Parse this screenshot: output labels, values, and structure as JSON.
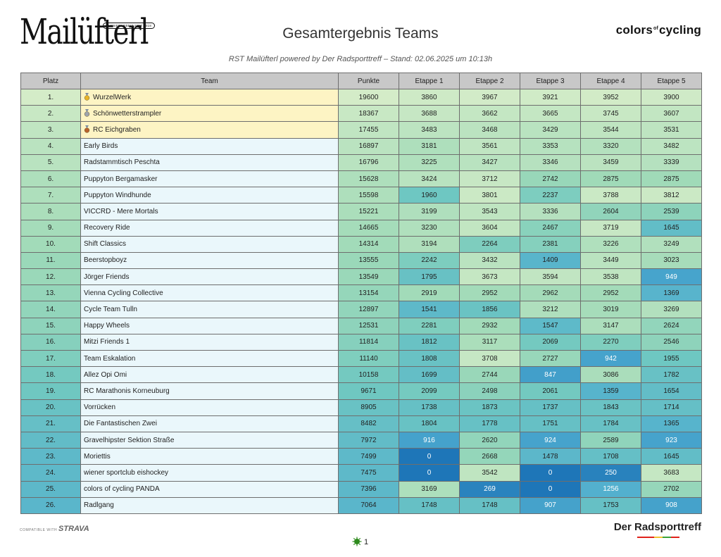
{
  "header": {
    "brand_left": "Mailüfterl",
    "brand_left_tag": "PIONIERARBEIT SEIT 2018",
    "title": "Gesamtergebnis Teams",
    "subtitle": "RST Mailüfterl powered by Der Radsporttreff – Stand: 02.06.2025 um 10:13h",
    "brand_right_a": "colors",
    "brand_right_of": "of",
    "brand_right_b": "cycling"
  },
  "table": {
    "columns": [
      "Platz",
      "Team",
      "Punkte",
      "Etappe 1",
      "Etappe 2",
      "Etappe 3",
      "Etappe 4",
      "Etappe 5"
    ],
    "rows": [
      {
        "platz": "1.",
        "team": "WurzelWerk",
        "medal": "gold",
        "punkte": "19600",
        "e": [
          "3860",
          "3967",
          "3921",
          "3952",
          "3900"
        ]
      },
      {
        "platz": "2.",
        "team": "Schönwetterstrampler",
        "medal": "silver",
        "punkte": "18367",
        "e": [
          "3688",
          "3662",
          "3665",
          "3745",
          "3607"
        ]
      },
      {
        "platz": "3.",
        "team": "RC Eichgraben",
        "medal": "bronze",
        "punkte": "17455",
        "e": [
          "3483",
          "3468",
          "3429",
          "3544",
          "3531"
        ]
      },
      {
        "platz": "4.",
        "team": "Early Birds",
        "medal": "",
        "punkte": "16897",
        "e": [
          "3181",
          "3561",
          "3353",
          "3320",
          "3482"
        ]
      },
      {
        "platz": "5.",
        "team": "Radstammtisch Peschta",
        "medal": "",
        "punkte": "16796",
        "e": [
          "3225",
          "3427",
          "3346",
          "3459",
          "3339"
        ]
      },
      {
        "platz": "6.",
        "team": "Puppyton Bergamasker",
        "medal": "",
        "punkte": "15628",
        "e": [
          "3424",
          "3712",
          "2742",
          "2875",
          "2875"
        ]
      },
      {
        "platz": "7.",
        "team": "Puppyton Windhunde",
        "medal": "",
        "punkte": "15598",
        "e": [
          "1960",
          "3801",
          "2237",
          "3788",
          "3812"
        ]
      },
      {
        "platz": "8.",
        "team": "VICCRD - Mere Mortals",
        "medal": "",
        "punkte": "15221",
        "e": [
          "3199",
          "3543",
          "3336",
          "2604",
          "2539"
        ]
      },
      {
        "platz": "9.",
        "team": "Recovery Ride",
        "medal": "",
        "punkte": "14665",
        "e": [
          "3230",
          "3604",
          "2467",
          "3719",
          "1645"
        ]
      },
      {
        "platz": "10.",
        "team": "Shift Classics",
        "medal": "",
        "punkte": "14314",
        "e": [
          "3194",
          "2264",
          "2381",
          "3226",
          "3249"
        ]
      },
      {
        "platz": "11.",
        "team": "Beerstopboyz",
        "medal": "",
        "punkte": "13555",
        "e": [
          "2242",
          "3432",
          "1409",
          "3449",
          "3023"
        ]
      },
      {
        "platz": "12.",
        "team": "Jörger Friends",
        "medal": "",
        "punkte": "13549",
        "e": [
          "1795",
          "3673",
          "3594",
          "3538",
          "949"
        ]
      },
      {
        "platz": "13.",
        "team": "Vienna Cycling Collective",
        "medal": "",
        "punkte": "13154",
        "e": [
          "2919",
          "2952",
          "2962",
          "2952",
          "1369"
        ]
      },
      {
        "platz": "14.",
        "team": "Cycle Team Tulln",
        "medal": "",
        "punkte": "12897",
        "e": [
          "1541",
          "1856",
          "3212",
          "3019",
          "3269"
        ]
      },
      {
        "platz": "15.",
        "team": "Happy Wheels",
        "medal": "",
        "punkte": "12531",
        "e": [
          "2281",
          "2932",
          "1547",
          "3147",
          "2624"
        ]
      },
      {
        "platz": "16.",
        "team": "Mitzi Friends 1",
        "medal": "",
        "punkte": "11814",
        "e": [
          "1812",
          "3117",
          "2069",
          "2270",
          "2546"
        ]
      },
      {
        "platz": "17.",
        "team": "Team Eskalation",
        "medal": "",
        "punkte": "11140",
        "e": [
          "1808",
          "3708",
          "2727",
          "942",
          "1955"
        ]
      },
      {
        "platz": "18.",
        "team": "Allez Opi Omi",
        "medal": "",
        "punkte": "10158",
        "e": [
          "1699",
          "2744",
          "847",
          "3086",
          "1782"
        ]
      },
      {
        "platz": "19.",
        "team": "RC Marathonis Korneuburg",
        "medal": "",
        "punkte": "9671",
        "e": [
          "2099",
          "2498",
          "2061",
          "1359",
          "1654"
        ]
      },
      {
        "platz": "20.",
        "team": "Vorrücken",
        "medal": "",
        "punkte": "8905",
        "e": [
          "1738",
          "1873",
          "1737",
          "1843",
          "1714"
        ]
      },
      {
        "platz": "21.",
        "team": "Die Fantastischen Zwei",
        "medal": "",
        "punkte": "8482",
        "e": [
          "1804",
          "1778",
          "1751",
          "1784",
          "1365"
        ]
      },
      {
        "platz": "22.",
        "team": "Gravelhipster Sektion Straße",
        "medal": "",
        "punkte": "7972",
        "e": [
          "916",
          "2620",
          "924",
          "2589",
          "923"
        ]
      },
      {
        "platz": "23.",
        "team": "Moriettis",
        "medal": "",
        "punkte": "7499",
        "e": [
          "0",
          "2668",
          "1478",
          "1708",
          "1645"
        ]
      },
      {
        "platz": "24.",
        "team": "wiener sportclub eishockey",
        "medal": "",
        "punkte": "7475",
        "e": [
          "0",
          "3542",
          "0",
          "250",
          "3683"
        ]
      },
      {
        "platz": "25.",
        "team": "colors of cycling PANDA",
        "medal": "",
        "punkte": "7396",
        "e": [
          "3169",
          "269",
          "0",
          "1256",
          "2702"
        ]
      },
      {
        "platz": "26.",
        "team": "Radlgang",
        "medal": "",
        "punkte": "7064",
        "e": [
          "1748",
          "1748",
          "907",
          "1753",
          "908"
        ]
      }
    ]
  },
  "footer": {
    "strava_prefix": "COMPATIBLE WITH",
    "strava_brand": "STRAVA",
    "brand_footer": "Der Radsporttreff",
    "page_number": "1"
  },
  "colors": {
    "header_bg": "#c8c8c8",
    "podium_team_bg": "#fdf4c4",
    "medal_gold": "#e8b42a",
    "medal_silver": "#9ea4ad",
    "medal_bronze": "#b8622c"
  }
}
